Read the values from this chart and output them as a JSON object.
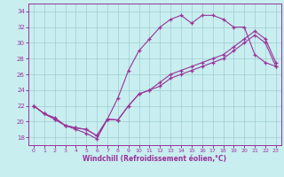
{
  "xlabel": "Windchill (Refroidissement éolien,°C)",
  "bg_color": "#c8eef0",
  "grid_color": "#a0ccd0",
  "line_color": "#993399",
  "spine_color": "#993399",
  "xlim": [
    -0.5,
    23.5
  ],
  "ylim": [
    17.0,
    35.0
  ],
  "yticks": [
    18,
    20,
    22,
    24,
    26,
    28,
    30,
    32,
    34
  ],
  "xticks": [
    0,
    1,
    2,
    3,
    4,
    5,
    6,
    7,
    8,
    9,
    10,
    11,
    12,
    13,
    14,
    15,
    16,
    17,
    18,
    19,
    20,
    21,
    22,
    23
  ],
  "line1_x": [
    0,
    1,
    2,
    3,
    4,
    5,
    6,
    7,
    8,
    9,
    10,
    11,
    12,
    13,
    14,
    15,
    16,
    17,
    18,
    19,
    20,
    21,
    22,
    23
  ],
  "line1_y": [
    22.0,
    21.0,
    20.5,
    19.5,
    19.0,
    18.5,
    17.8,
    20.3,
    20.2,
    22.0,
    23.5,
    24.0,
    24.5,
    25.5,
    26.0,
    26.5,
    27.0,
    27.5,
    28.0,
    29.0,
    30.0,
    31.0,
    30.0,
    27.0
  ],
  "line2_x": [
    0,
    1,
    2,
    3,
    4,
    5,
    6,
    7,
    8,
    9,
    10,
    11,
    12,
    13,
    14,
    15,
    16,
    17,
    18,
    19,
    20,
    21,
    22,
    23
  ],
  "line2_y": [
    22.0,
    21.0,
    20.3,
    19.5,
    19.2,
    19.0,
    18.2,
    20.3,
    23.0,
    26.5,
    29.0,
    30.5,
    32.0,
    33.0,
    33.5,
    32.5,
    33.5,
    33.5,
    33.0,
    32.0,
    32.0,
    28.5,
    27.5,
    27.0
  ],
  "line3_x": [
    0,
    1,
    2,
    3,
    4,
    5,
    6,
    7,
    8,
    9,
    10,
    11,
    12,
    13,
    14,
    15,
    16,
    17,
    18,
    19,
    20,
    21,
    22,
    23
  ],
  "line3_y": [
    22.0,
    21.0,
    20.3,
    19.5,
    19.2,
    19.0,
    18.2,
    20.3,
    20.2,
    22.0,
    23.5,
    24.0,
    25.0,
    26.0,
    26.5,
    27.0,
    27.5,
    28.0,
    28.5,
    29.5,
    30.5,
    31.5,
    30.5,
    27.5
  ]
}
